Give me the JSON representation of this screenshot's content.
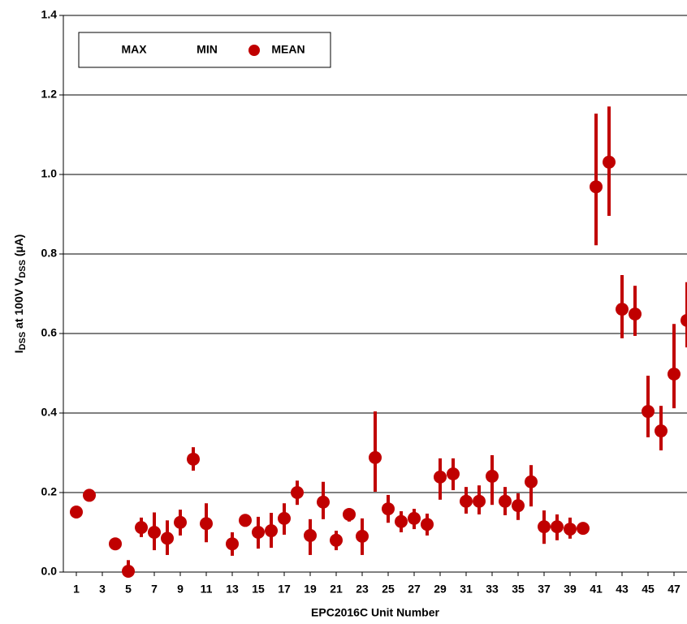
{
  "chart_data": {
    "type": "errorbar",
    "x_label": "EPC2016C Unit Number",
    "y_label_parts": [
      "I",
      "DSS",
      " at 100V V",
      "DSS",
      " (µA)"
    ],
    "x": [
      1,
      2,
      3,
      4,
      5,
      6,
      7,
      8,
      9,
      10,
      11,
      12,
      13,
      14,
      15,
      16,
      17,
      18,
      19,
      20,
      21,
      22,
      23,
      24,
      25,
      26,
      27,
      28,
      29,
      30,
      31,
      32,
      33,
      34,
      35,
      36,
      37,
      38,
      39,
      40,
      41,
      42,
      43,
      44,
      45,
      46,
      47,
      48
    ],
    "series": [
      {
        "name": "MAX",
        "marker": "none",
        "color": "#c00000",
        "values": [
          null,
          null,
          null,
          null,
          0.03,
          0.137,
          0.15,
          0.13,
          0.157,
          0.314,
          0.173,
          null,
          0.1,
          0.145,
          0.139,
          0.149,
          0.173,
          0.23,
          0.133,
          0.227,
          0.104,
          0.159,
          0.135,
          0.404,
          0.194,
          0.153,
          0.159,
          0.147,
          0.286,
          0.286,
          0.214,
          0.218,
          0.294,
          0.214,
          0.198,
          0.269,
          0.155,
          0.145,
          0.137,
          null,
          1.153,
          1.171,
          0.747,
          0.72,
          0.494,
          0.418,
          0.624,
          0.729
        ]
      },
      {
        "name": "MIN",
        "marker": "none",
        "color": "#c00000",
        "values": [
          null,
          null,
          null,
          null,
          0,
          0.088,
          0.055,
          0.043,
          0.092,
          0.255,
          0.075,
          null,
          0.041,
          0.114,
          0.059,
          0.061,
          0.094,
          0.169,
          0.043,
          0.133,
          0.055,
          0.127,
          0.043,
          0.202,
          0.124,
          0.1,
          0.108,
          0.092,
          0.182,
          0.206,
          0.147,
          0.145,
          0.169,
          0.143,
          0.131,
          0.165,
          0.071,
          0.08,
          0.084,
          null,
          0.822,
          0.896,
          0.588,
          0.594,
          0.339,
          0.306,
          0.412,
          0.565
        ]
      },
      {
        "name": "MEAN",
        "marker": "circle",
        "color": "#c00000",
        "values": [
          0.151,
          0.193,
          null,
          0.071,
          0.002,
          0.112,
          0.1,
          0.085,
          0.125,
          0.284,
          0.122,
          null,
          0.071,
          0.13,
          0.1,
          0.104,
          0.135,
          0.2,
          0.092,
          0.176,
          0.08,
          0.145,
          0.09,
          0.288,
          0.159,
          0.127,
          0.135,
          0.12,
          0.239,
          0.247,
          0.178,
          0.178,
          0.241,
          0.178,
          0.167,
          0.227,
          0.114,
          0.114,
          0.108,
          0.11,
          0.969,
          1.031,
          0.661,
          0.649,
          0.404,
          0.355,
          0.498,
          0.633
        ]
      }
    ],
    "xlim": [
      0,
      48
    ],
    "xticks": [
      1,
      3,
      5,
      7,
      9,
      11,
      13,
      15,
      17,
      19,
      21,
      23,
      25,
      27,
      29,
      31,
      33,
      35,
      37,
      39,
      41,
      43,
      45,
      47
    ],
    "ylim": [
      0,
      1.4
    ],
    "yticks": [
      {
        "value": 0,
        "label": "0.0"
      },
      0.2,
      0.4,
      0.6,
      0.8,
      {
        "value": 1,
        "label": "1.0"
      },
      1.2,
      1.4
    ],
    "grid": true,
    "legend": "top-left"
  }
}
